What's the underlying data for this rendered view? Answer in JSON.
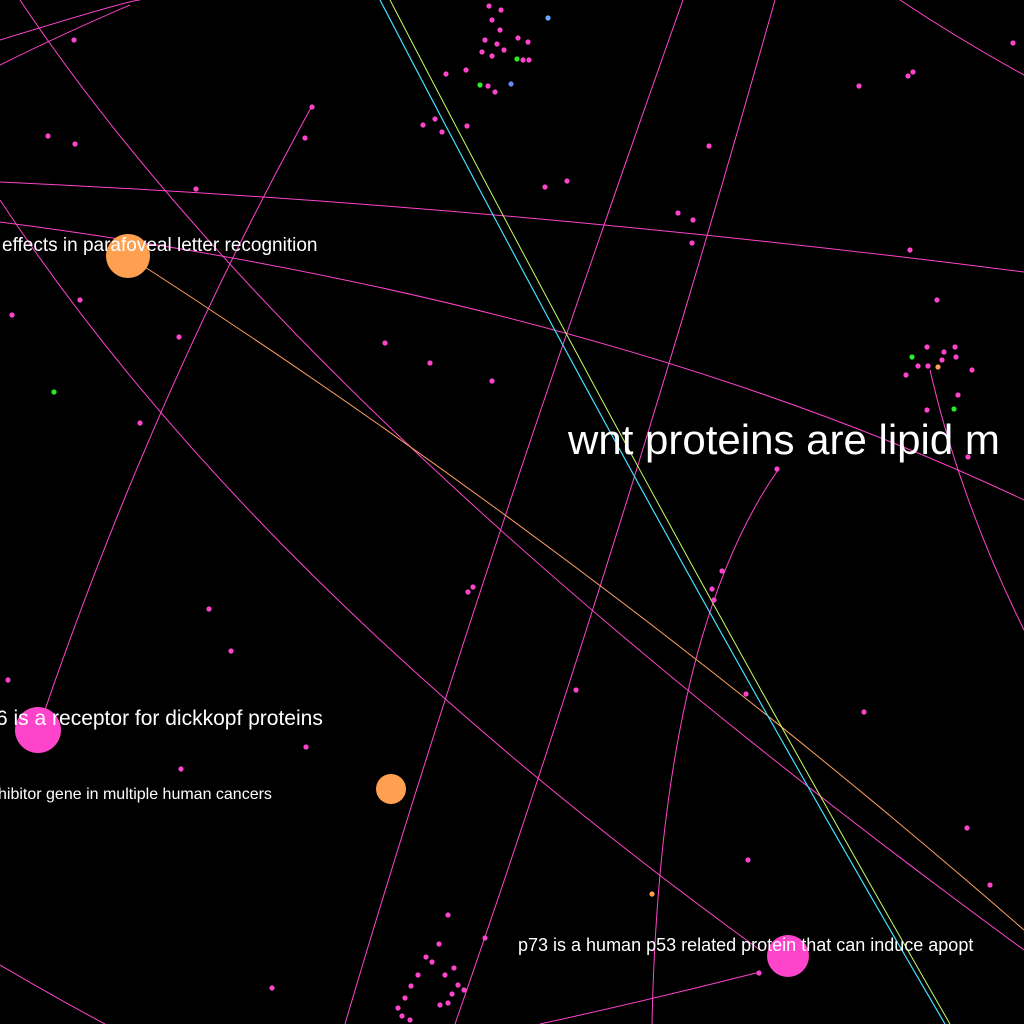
{
  "colors": {
    "background": "#000000",
    "edge_pink": "#ff44cc",
    "edge_orange": "#ffa060",
    "edge_cyan": "#40e0ff",
    "edge_lime": "#c8ff60",
    "node_pink": "#ff44cc",
    "node_orange": "#ffa050",
    "node_green": "#22ee22",
    "node_blue": "#6688ff",
    "node_light_blue": "#66aaff"
  },
  "labels": {
    "wnt": "wnt proteins are lipid m",
    "parafoveal": "effects in parafoveal letter recognition",
    "dickkopf": "6 is a receptor for dickkopf proteins",
    "inhibitor": "hibitor gene in multiple human cancers",
    "p73": "p73 is a human p53 related protein that can induce apopt"
  }
}
